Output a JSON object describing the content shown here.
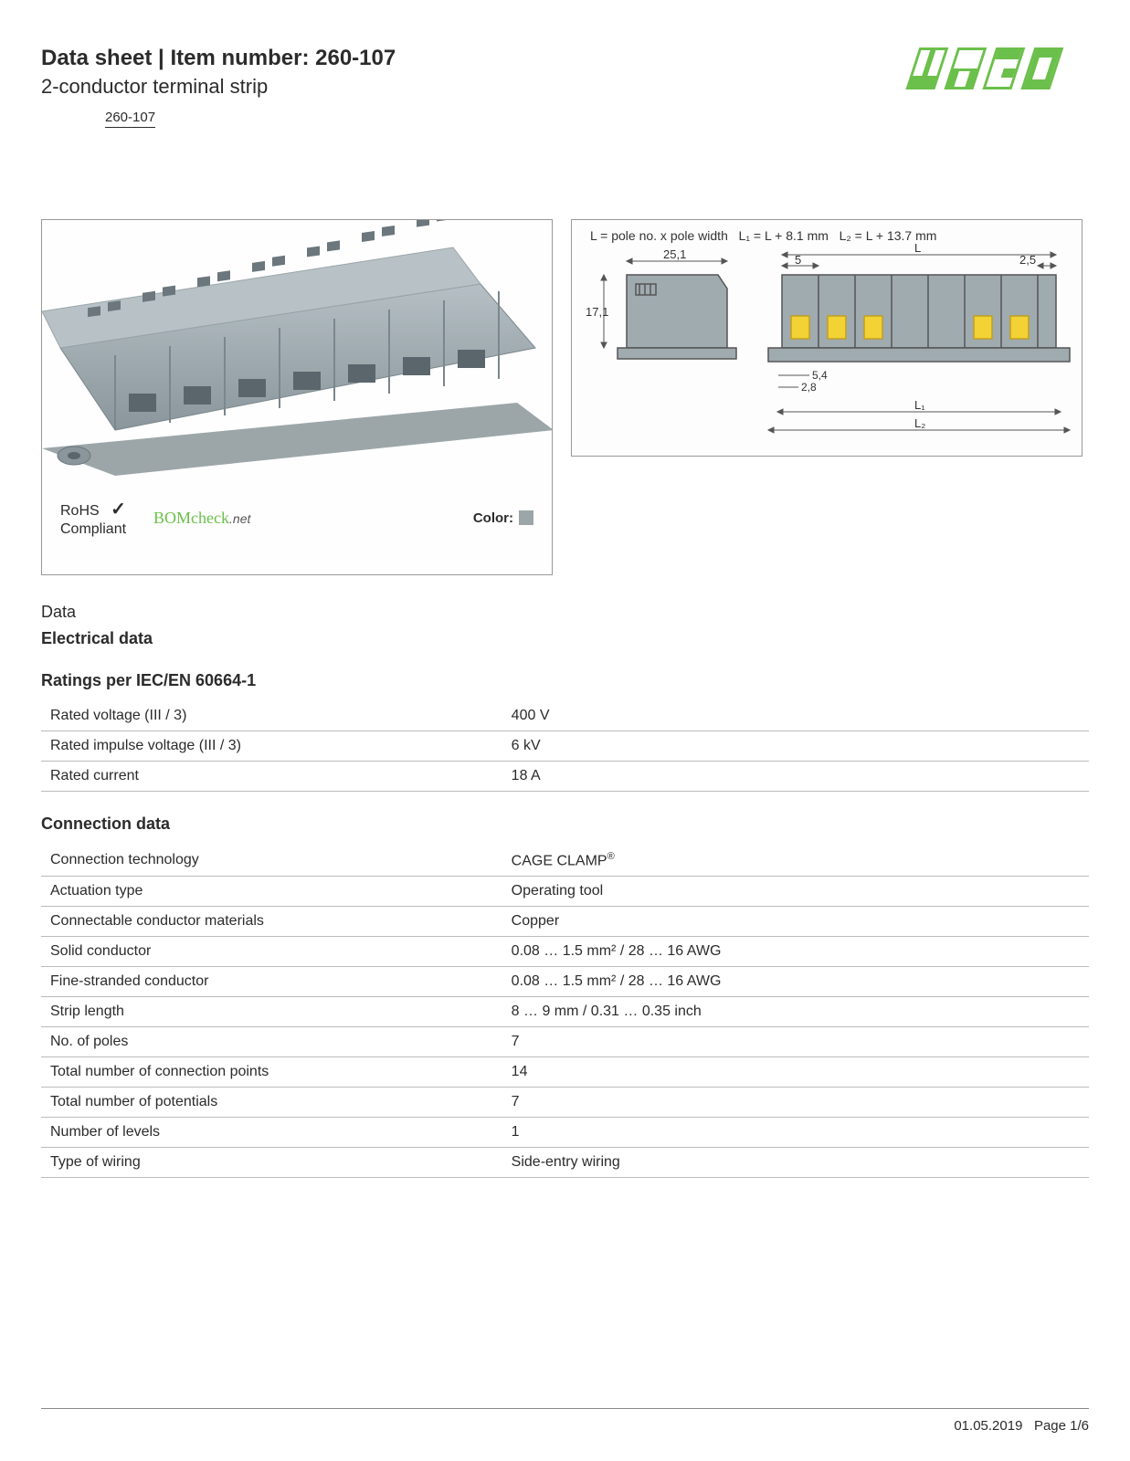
{
  "header": {
    "title_prefix": "Data sheet",
    "title_sep": " | ",
    "title_label": "Item number: ",
    "item_number": "260-107",
    "subtitle": "2-conductor terminal strip",
    "item_id": "260-107"
  },
  "logo": {
    "name": "WAGO",
    "color": "#6bc04b"
  },
  "product_image": {
    "body_color": "#a0abb0",
    "shadow_color": "#7a878c",
    "base_color": "#8a969b"
  },
  "compliance": {
    "rohs_line1": "RoHS",
    "rohs_line2": "Compliant",
    "checkmark": "✓",
    "bomcheck": "BOMcheck",
    "bomcheck_suffix": ".net",
    "color_label": "Color:",
    "color_swatch": "#9ca6a8"
  },
  "diagram": {
    "formula": "L = pole no. x pole width   L₁ = L + 8.1 mm   L₂ = L + 13.7 mm",
    "dims": {
      "w": "25,1",
      "h": "17,1",
      "pole_w": "5",
      "end_w": "2,5",
      "foot1": "5,4",
      "foot2": "2,8",
      "L": "L",
      "L1": "L₁",
      "L2": "L₂"
    },
    "block_fill": "#a0abb0",
    "block_stroke": "#555",
    "contact_color": "#f2d234"
  },
  "sections": {
    "data_label": "Data",
    "electrical_label": "Electrical data",
    "ratings_heading": "Ratings per IEC/EN 60664-1",
    "connection_heading": "Connection data"
  },
  "ratings": [
    {
      "label": "Rated voltage (III / 3)",
      "value": "400 V"
    },
    {
      "label": "Rated impulse voltage (III / 3)",
      "value": "6 kV"
    },
    {
      "label": "Rated current",
      "value": "18 A"
    }
  ],
  "connection": [
    {
      "label": "Connection technology",
      "value": "CAGE CLAMP",
      "super": "®"
    },
    {
      "label": "Actuation type",
      "value": "Operating tool"
    },
    {
      "label": "Connectable conductor materials",
      "value": "Copper"
    },
    {
      "label": "Solid conductor",
      "value": "0.08 … 1.5 mm² / 28 … 16 AWG"
    },
    {
      "label": "Fine-stranded conductor",
      "value": "0.08 … 1.5 mm² / 28 … 16 AWG"
    },
    {
      "label": "Strip length",
      "value": "8 … 9 mm / 0.31 … 0.35 inch"
    },
    {
      "label": "No. of poles",
      "value": "7"
    },
    {
      "label": "Total number of connection points",
      "value": "14"
    },
    {
      "label": "Total number of potentials",
      "value": "7"
    },
    {
      "label": "Number of levels",
      "value": "1"
    },
    {
      "label": "Type of wiring",
      "value": "Side-entry wiring"
    }
  ],
  "footer": {
    "date": "01.05.2019",
    "page": "Page 1/6"
  }
}
